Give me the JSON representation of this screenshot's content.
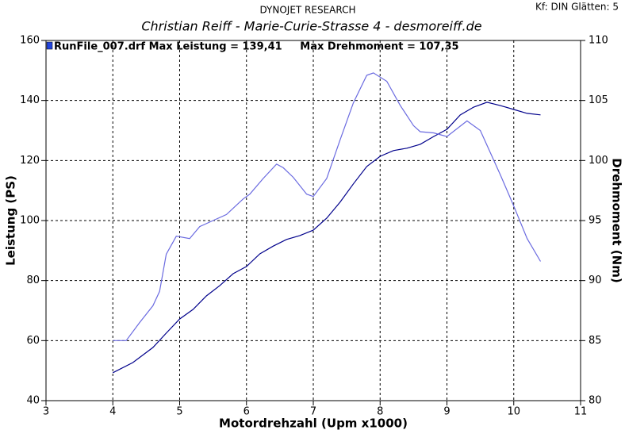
{
  "chart_data": {
    "type": "line",
    "title": "DYNOJET RESEARCH",
    "subtitle": "Christian Reiff - Marie-Curie-Strasse 4 - desmoreiff.de",
    "settings_text": "Kf: DIN  Glätten: 5",
    "legend_text": "RunFile_007.drf Max Leistung = 139,41     Max Drehmoment = 107,35",
    "x_label": "Motordrehzahl (Upm x1000)",
    "y_label": "Leistung (PS)",
    "y2_label": "Drehmoment (Nm)",
    "xlim": [
      3,
      11
    ],
    "xticks": [
      3,
      4,
      5,
      6,
      7,
      8,
      9,
      10,
      11
    ],
    "ylim": [
      40,
      160
    ],
    "yticks": [
      40,
      60,
      80,
      100,
      120,
      140,
      160
    ],
    "y2lim": [
      80,
      110
    ],
    "y2ticks": [
      80,
      85,
      90,
      95,
      100,
      105,
      110
    ],
    "grid": true,
    "series": [
      {
        "name": "Leistung",
        "color": "#00008b",
        "axis": "y",
        "x": [
          4.0,
          4.3,
          4.6,
          4.8,
          5.0,
          5.2,
          5.4,
          5.6,
          5.8,
          6.0,
          6.2,
          6.4,
          6.6,
          6.8,
          7.0,
          7.2,
          7.4,
          7.6,
          7.8,
          8.0,
          8.2,
          8.4,
          8.6,
          8.8,
          9.0,
          9.2,
          9.4,
          9.6,
          9.8,
          10.0,
          10.2,
          10.4
        ],
        "values": [
          49.3,
          52.7,
          57.7,
          62.5,
          67.2,
          70.4,
          74.9,
          78.3,
          82.3,
          84.7,
          88.9,
          91.5,
          93.7,
          95.0,
          96.8,
          100.8,
          106.1,
          112.2,
          118.0,
          121.4,
          123.3,
          124.1,
          125.4,
          128.0,
          130.4,
          135.2,
          137.8,
          139.4,
          138.3,
          137.0,
          135.7,
          135.2
        ]
      },
      {
        "name": "Drehmoment",
        "color": "#6a6ae0",
        "axis": "y2",
        "x": [
          4.0,
          4.2,
          4.4,
          4.6,
          4.7,
          4.8,
          4.95,
          5.15,
          5.3,
          5.5,
          5.7,
          5.95,
          6.05,
          6.25,
          6.45,
          6.55,
          6.7,
          6.9,
          7.0,
          7.2,
          7.4,
          7.6,
          7.8,
          7.9,
          8.1,
          8.3,
          8.5,
          8.6,
          8.8,
          9.0,
          9.3,
          9.5,
          9.8,
          10.0,
          10.2,
          10.4
        ],
        "values": [
          85.0,
          85.0,
          86.5,
          87.9,
          89.1,
          92.2,
          93.7,
          93.5,
          94.5,
          95.0,
          95.5,
          96.8,
          97.2,
          98.5,
          99.7,
          99.4,
          98.6,
          97.2,
          97.0,
          98.5,
          101.7,
          104.8,
          107.1,
          107.3,
          106.6,
          104.6,
          102.9,
          102.4,
          102.3,
          102.0,
          103.3,
          102.5,
          98.8,
          96.2,
          93.5,
          91.6
        ]
      }
    ]
  }
}
